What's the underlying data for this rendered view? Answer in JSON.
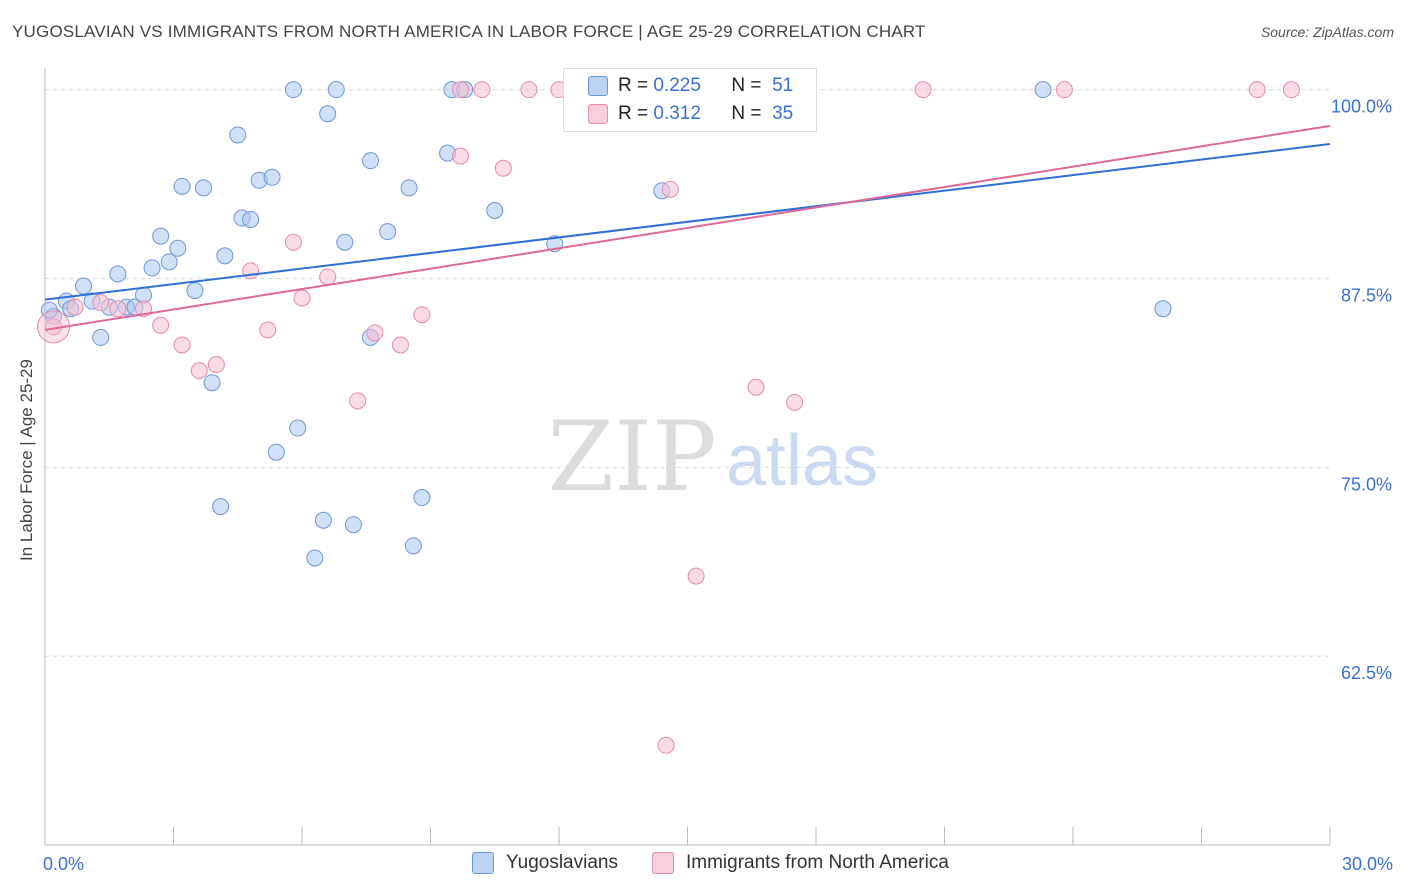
{
  "header": {
    "title": "YUGOSLAVIAN VS IMMIGRANTS FROM NORTH AMERICA IN LABOR FORCE | AGE 25-29 CORRELATION CHART",
    "source": "Source: ZipAtlas.com"
  },
  "watermark": {
    "zip": "ZIP",
    "atlas": "atlas"
  },
  "colors": {
    "blue_fill": "#a9c6f0",
    "blue_stroke": "#6b97dd",
    "blue_line": "#2f6fd6",
    "pink_fill": "#f6bfd0",
    "pink_stroke": "#e98aa8",
    "pink_line": "#e06896",
    "axis_text": "#3a6fd8",
    "grid": "#d8d8d8"
  },
  "stats_legend": {
    "rows": [
      {
        "r_label": "R =",
        "r_value": "0.225",
        "n_label": "N =",
        "n_value": "51"
      },
      {
        "r_label": "R =",
        "r_value": "0.312",
        "n_label": "N =",
        "n_value": "35"
      }
    ]
  },
  "bottom_legend": {
    "items": [
      "Yugoslavians",
      "Immigrants from North America"
    ]
  },
  "chart_data": {
    "type": "scatter",
    "ylabel": "In Labor Force | Age 25-29",
    "xlim": [
      0,
      30
    ],
    "ylim": [
      50,
      101.3
    ],
    "x_tick_labels": [
      "0.0%",
      "30.0%"
    ],
    "y_ticks": [
      {
        "value": 100,
        "label": "100.0%"
      },
      {
        "value": 87.5,
        "label": "87.5%"
      },
      {
        "value": 75,
        "label": "75.0%"
      },
      {
        "value": 62.5,
        "label": "62.5%"
      }
    ],
    "x_minor_ticks": [
      0,
      3,
      6,
      9,
      12,
      15,
      18,
      21,
      24,
      27,
      30
    ],
    "grid": true,
    "series": [
      {
        "name": "Yugoslavians",
        "color": "blue",
        "trend": {
          "x": [
            0,
            30
          ],
          "y": [
            86.1,
            96.4
          ]
        },
        "points": [
          [
            0.2,
            85.0
          ],
          [
            0.5,
            86.0
          ],
          [
            0.6,
            85.5
          ],
          [
            0.9,
            87.0
          ],
          [
            1.1,
            86.0
          ],
          [
            1.3,
            83.6
          ],
          [
            1.5,
            85.6
          ],
          [
            1.7,
            87.8
          ],
          [
            1.9,
            85.6
          ],
          [
            2.1,
            85.6
          ],
          [
            2.3,
            86.4
          ],
          [
            2.5,
            88.2
          ],
          [
            2.7,
            90.3
          ],
          [
            2.9,
            88.6
          ],
          [
            3.1,
            89.5
          ],
          [
            3.2,
            93.6
          ],
          [
            3.5,
            86.7
          ],
          [
            3.7,
            93.5
          ],
          [
            3.9,
            80.6
          ],
          [
            4.1,
            72.4
          ],
          [
            4.2,
            89.0
          ],
          [
            4.5,
            97.0
          ],
          [
            4.6,
            91.5
          ],
          [
            4.8,
            91.4
          ],
          [
            5.0,
            94.0
          ],
          [
            5.3,
            94.2
          ],
          [
            5.4,
            76.0
          ],
          [
            5.8,
            100.0
          ],
          [
            5.9,
            77.6
          ],
          [
            6.3,
            69.0
          ],
          [
            6.5,
            71.5
          ],
          [
            6.6,
            98.4
          ],
          [
            6.8,
            100.0
          ],
          [
            7.0,
            89.9
          ],
          [
            7.2,
            71.2
          ],
          [
            7.6,
            95.3
          ],
          [
            7.6,
            83.6
          ],
          [
            8.0,
            90.6
          ],
          [
            8.5,
            93.5
          ],
          [
            8.6,
            69.8
          ],
          [
            8.8,
            73.0
          ],
          [
            9.4,
            95.8
          ],
          [
            9.5,
            100.0
          ],
          [
            9.8,
            100.0
          ],
          [
            10.5,
            92.0
          ],
          [
            11.9,
            89.8
          ],
          [
            14.4,
            93.3
          ],
          [
            15.0,
            100.0
          ],
          [
            23.3,
            100.0
          ],
          [
            26.1,
            85.5
          ],
          [
            0.1,
            85.4
          ]
        ]
      },
      {
        "name": "Immigrants from North America",
        "color": "pink",
        "trend": {
          "x": [
            0,
            30
          ],
          "y": [
            84.1,
            97.6
          ]
        },
        "points": [
          [
            0.2,
            84.3
          ],
          [
            0.7,
            85.6
          ],
          [
            1.3,
            85.9
          ],
          [
            1.7,
            85.5
          ],
          [
            2.3,
            85.5
          ],
          [
            2.7,
            84.4
          ],
          [
            3.2,
            83.1
          ],
          [
            3.6,
            81.4
          ],
          [
            4.0,
            81.8
          ],
          [
            4.8,
            88.0
          ],
          [
            5.2,
            84.1
          ],
          [
            5.8,
            89.9
          ],
          [
            6.0,
            86.2
          ],
          [
            6.6,
            87.6
          ],
          [
            7.3,
            79.4
          ],
          [
            7.7,
            83.9
          ],
          [
            8.3,
            83.1
          ],
          [
            8.8,
            85.1
          ],
          [
            9.7,
            95.6
          ],
          [
            10.2,
            100.0
          ],
          [
            10.7,
            94.8
          ],
          [
            11.3,
            100.0
          ],
          [
            12.0,
            100.0
          ],
          [
            12.6,
            100.0
          ],
          [
            14.5,
            56.6
          ],
          [
            14.6,
            93.4
          ],
          [
            15.2,
            67.8
          ],
          [
            15.6,
            100.0
          ],
          [
            16.6,
            80.3
          ],
          [
            17.5,
            79.3
          ],
          [
            20.5,
            100.0
          ],
          [
            23.8,
            100.0
          ],
          [
            28.3,
            100.0
          ],
          [
            29.1,
            100.0
          ],
          [
            9.7,
            100.0
          ]
        ]
      }
    ]
  }
}
